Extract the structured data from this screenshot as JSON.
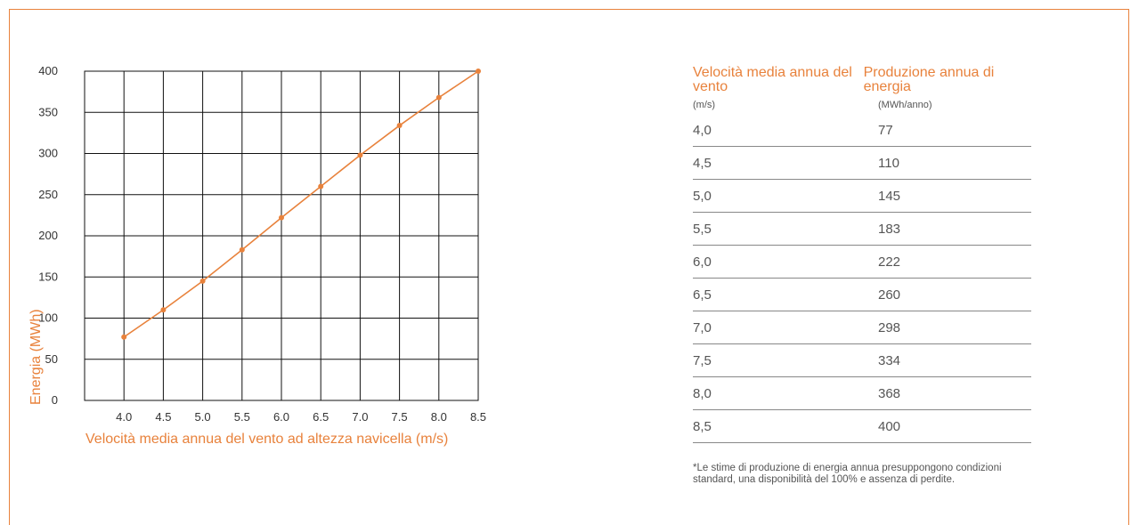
{
  "chart_data": {
    "type": "line",
    "x": [
      4.0,
      4.5,
      5.0,
      5.5,
      6.0,
      6.5,
      7.0,
      7.5,
      8.0,
      8.5
    ],
    "series": [
      {
        "values": [
          77,
          110,
          145,
          183,
          222,
          260,
          298,
          334,
          368,
          400
        ]
      }
    ],
    "xticks": [
      "4.0",
      "4.5",
      "5.0",
      "5.5",
      "6.0",
      "6.5",
      "7.0",
      "7.5",
      "8.0",
      "8.5"
    ],
    "yticks": [
      "0",
      "50",
      "100",
      "150",
      "200",
      "250",
      "300",
      "350",
      "400"
    ],
    "xlim": [
      3.5,
      8.5
    ],
    "ylim": [
      0,
      400
    ],
    "xlabel": "Velocità media annua del vento ad altezza navicella (m/s)",
    "ylabel": "Energia (MWh)",
    "grid": true,
    "line_color": "#e8823c"
  },
  "table": {
    "headers": [
      "Velocità media annua del vento",
      "Produzione annua di energia"
    ],
    "units": [
      "(m/s)",
      "(MWh/anno)"
    ],
    "rows": [
      [
        "4,0",
        "77"
      ],
      [
        "4,5",
        "110"
      ],
      [
        "5,0",
        "145"
      ],
      [
        "5,5",
        "183"
      ],
      [
        "6,0",
        "222"
      ],
      [
        "6,5",
        "260"
      ],
      [
        "7,0",
        "298"
      ],
      [
        "7,5",
        "334"
      ],
      [
        "8,0",
        "368"
      ],
      [
        "8,5",
        "400"
      ]
    ]
  },
  "note": "*Le stime di produzione di energia annua presuppongono condizioni standard, una disponibilità del 100% e assenza di perdite.",
  "colors": {
    "accent": "#e8823c",
    "grid": "#111111",
    "text": "#333333"
  }
}
